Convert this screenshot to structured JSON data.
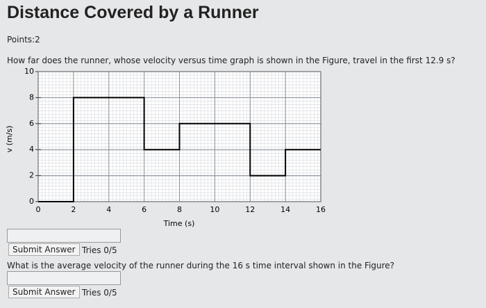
{
  "header": {
    "title": "Distance Covered by a Runner",
    "points": "Points:2"
  },
  "questions": [
    {
      "text": "How far does the runner, whose velocity versus time graph is shown in the Figure, travel in the first 12.9 s?",
      "button": "Submit Answer",
      "tries": "Tries 0/5"
    },
    {
      "text": "What is the average velocity of the runner during the 16 s time interval shown in the Figure?",
      "button": "Submit Answer",
      "tries": "Tries 0/5"
    }
  ],
  "chart": {
    "type": "line",
    "x_label": "Time (s)",
    "y_label": "v (m/s)",
    "x": [
      0,
      2,
      2,
      6,
      6,
      8,
      8,
      12,
      12,
      14,
      14,
      16
    ],
    "values": [
      0,
      0,
      8,
      8,
      4,
      4,
      6,
      6,
      2,
      2,
      4,
      4
    ],
    "color": "#000000",
    "xlim": [
      0,
      16
    ],
    "ylim": [
      0,
      10
    ],
    "xticks": [
      0,
      2,
      4,
      6,
      8,
      10,
      12,
      14,
      16
    ],
    "yticks": [
      0,
      2,
      4,
      6,
      8,
      10
    ],
    "grid": true
  }
}
